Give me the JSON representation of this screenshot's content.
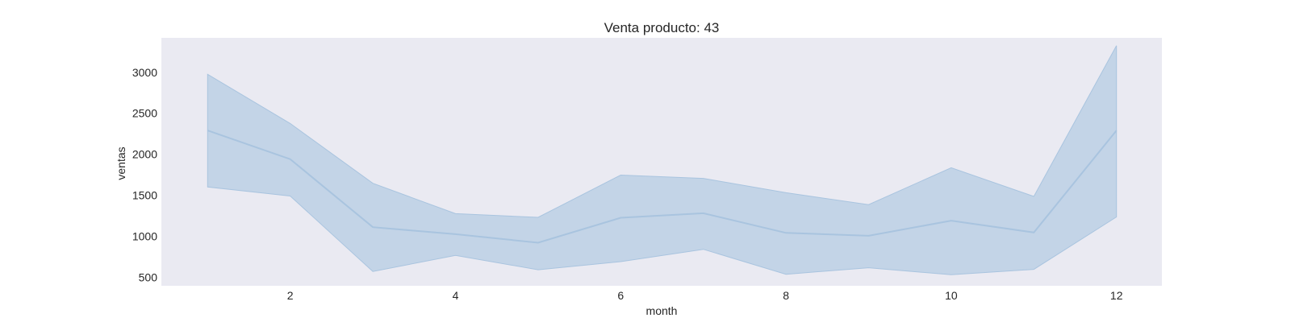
{
  "chart_data": {
    "type": "line",
    "title": "Venta producto: 43",
    "xlabel": "month",
    "ylabel": "ventas",
    "x": [
      1,
      2,
      3,
      4,
      5,
      6,
      7,
      8,
      9,
      10,
      11,
      12
    ],
    "series": [
      {
        "values": [
          2290,
          1940,
          1110,
          1025,
          920,
          1225,
          1280,
          1040,
          1005,
          1190,
          1045,
          2290
        ],
        "ci_upper": [
          2975,
          2375,
          1645,
          1275,
          1230,
          1745,
          1705,
          1530,
          1385,
          1835,
          1485,
          3325
        ],
        "ci_lower": [
          1600,
          1490,
          570,
          765,
          590,
          690,
          840,
          535,
          615,
          530,
          595,
          1235
        ]
      }
    ],
    "xticks": [
      2,
      4,
      6,
      8,
      10,
      12
    ],
    "yticks": [
      500,
      1000,
      1500,
      2000,
      2500,
      3000
    ],
    "xlim": [
      0.44,
      12.55
    ],
    "ylim": [
      395,
      3420
    ],
    "grid": false,
    "colors": {
      "plot_background": "#eaeaf2",
      "line": "#a9c4df",
      "band_fill": "#a9c4df"
    }
  }
}
